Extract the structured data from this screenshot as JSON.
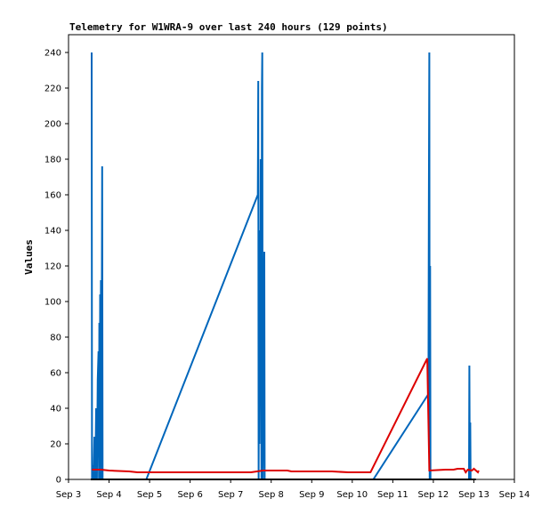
{
  "chart_data": {
    "type": "line",
    "title": "Telemetry for W1WRA-9 over last 240 hours (129 points)",
    "xlabel": "",
    "ylabel": "Values",
    "xlim": [
      0,
      11
    ],
    "ylim": [
      0,
      250
    ],
    "grid": false,
    "legend": "none",
    "x_ticks": [
      {
        "value": 0,
        "label": "Sep 3"
      },
      {
        "value": 1,
        "label": "Sep 4"
      },
      {
        "value": 2,
        "label": "Sep 5"
      },
      {
        "value": 3,
        "label": "Sep 6"
      },
      {
        "value": 4,
        "label": "Sep 7"
      },
      {
        "value": 5,
        "label": "Sep 8"
      },
      {
        "value": 6,
        "label": "Sep 9"
      },
      {
        "value": 7,
        "label": "Sep 10"
      },
      {
        "value": 8,
        "label": "Sep 11"
      },
      {
        "value": 9,
        "label": "Sep 12"
      },
      {
        "value": 10,
        "label": "Sep 13"
      },
      {
        "value": 11,
        "label": "Sep 14"
      }
    ],
    "y_ticks": [
      0,
      20,
      40,
      60,
      80,
      100,
      120,
      140,
      160,
      180,
      200,
      220,
      240
    ],
    "series": [
      {
        "color": "#0066bb",
        "points": [
          [
            0.57,
            240
          ],
          [
            0.58,
            0
          ],
          [
            0.6,
            8
          ],
          [
            0.62,
            0
          ],
          [
            0.64,
            24
          ],
          [
            0.66,
            0
          ],
          [
            0.68,
            40
          ],
          [
            0.7,
            0
          ],
          [
            0.72,
            56
          ],
          [
            0.74,
            72
          ],
          [
            0.75,
            0
          ],
          [
            0.76,
            88
          ],
          [
            0.77,
            0
          ],
          [
            0.78,
            104
          ],
          [
            0.79,
            0
          ],
          [
            0.8,
            112
          ],
          [
            0.81,
            0
          ],
          [
            0.83,
            176
          ],
          [
            0.84,
            0
          ],
          [
            1.92,
            0
          ],
          [
            4.67,
            160
          ],
          [
            4.68,
            224
          ],
          [
            4.69,
            0
          ],
          [
            4.7,
            100
          ],
          [
            4.71,
            20
          ],
          [
            4.72,
            140
          ],
          [
            4.73,
            60
          ],
          [
            4.74,
            180
          ],
          [
            4.76,
            0
          ],
          [
            4.77,
            220
          ],
          [
            4.78,
            240
          ],
          [
            4.79,
            0
          ],
          [
            4.83,
            128
          ],
          [
            4.84,
            0
          ],
          [
            7.52,
            0
          ],
          [
            8.88,
            48
          ],
          [
            8.89,
            160
          ],
          [
            8.9,
            240
          ],
          [
            8.91,
            0
          ],
          [
            8.92,
            120
          ],
          [
            8.93,
            0
          ],
          [
            9.88,
            0
          ],
          [
            9.89,
            64
          ],
          [
            9.9,
            0
          ],
          [
            9.91,
            32
          ],
          [
            9.92,
            0
          ],
          [
            10.0,
            0
          ]
        ]
      },
      {
        "color": "#dd0000",
        "points": [
          [
            0.58,
            5.5
          ],
          [
            0.8,
            5.5
          ],
          [
            1.0,
            5
          ],
          [
            1.5,
            4.5
          ],
          [
            1.7,
            4
          ],
          [
            2.5,
            4
          ],
          [
            3.5,
            4
          ],
          [
            4.5,
            4
          ],
          [
            4.8,
            5
          ],
          [
            5.4,
            5
          ],
          [
            5.5,
            4.5
          ],
          [
            6.5,
            4.5
          ],
          [
            6.9,
            4
          ],
          [
            7.45,
            4
          ],
          [
            8.85,
            68
          ],
          [
            8.9,
            5
          ],
          [
            9.3,
            5.5
          ],
          [
            9.5,
            5.5
          ],
          [
            9.6,
            6
          ],
          [
            9.75,
            6
          ],
          [
            9.8,
            4
          ],
          [
            9.85,
            5.5
          ],
          [
            9.95,
            5
          ],
          [
            10.0,
            6
          ],
          [
            10.1,
            4
          ],
          [
            10.12,
            5
          ]
        ]
      },
      {
        "color": "#000000",
        "points": [
          [
            0.55,
            0
          ],
          [
            10.05,
            0
          ]
        ]
      }
    ]
  }
}
